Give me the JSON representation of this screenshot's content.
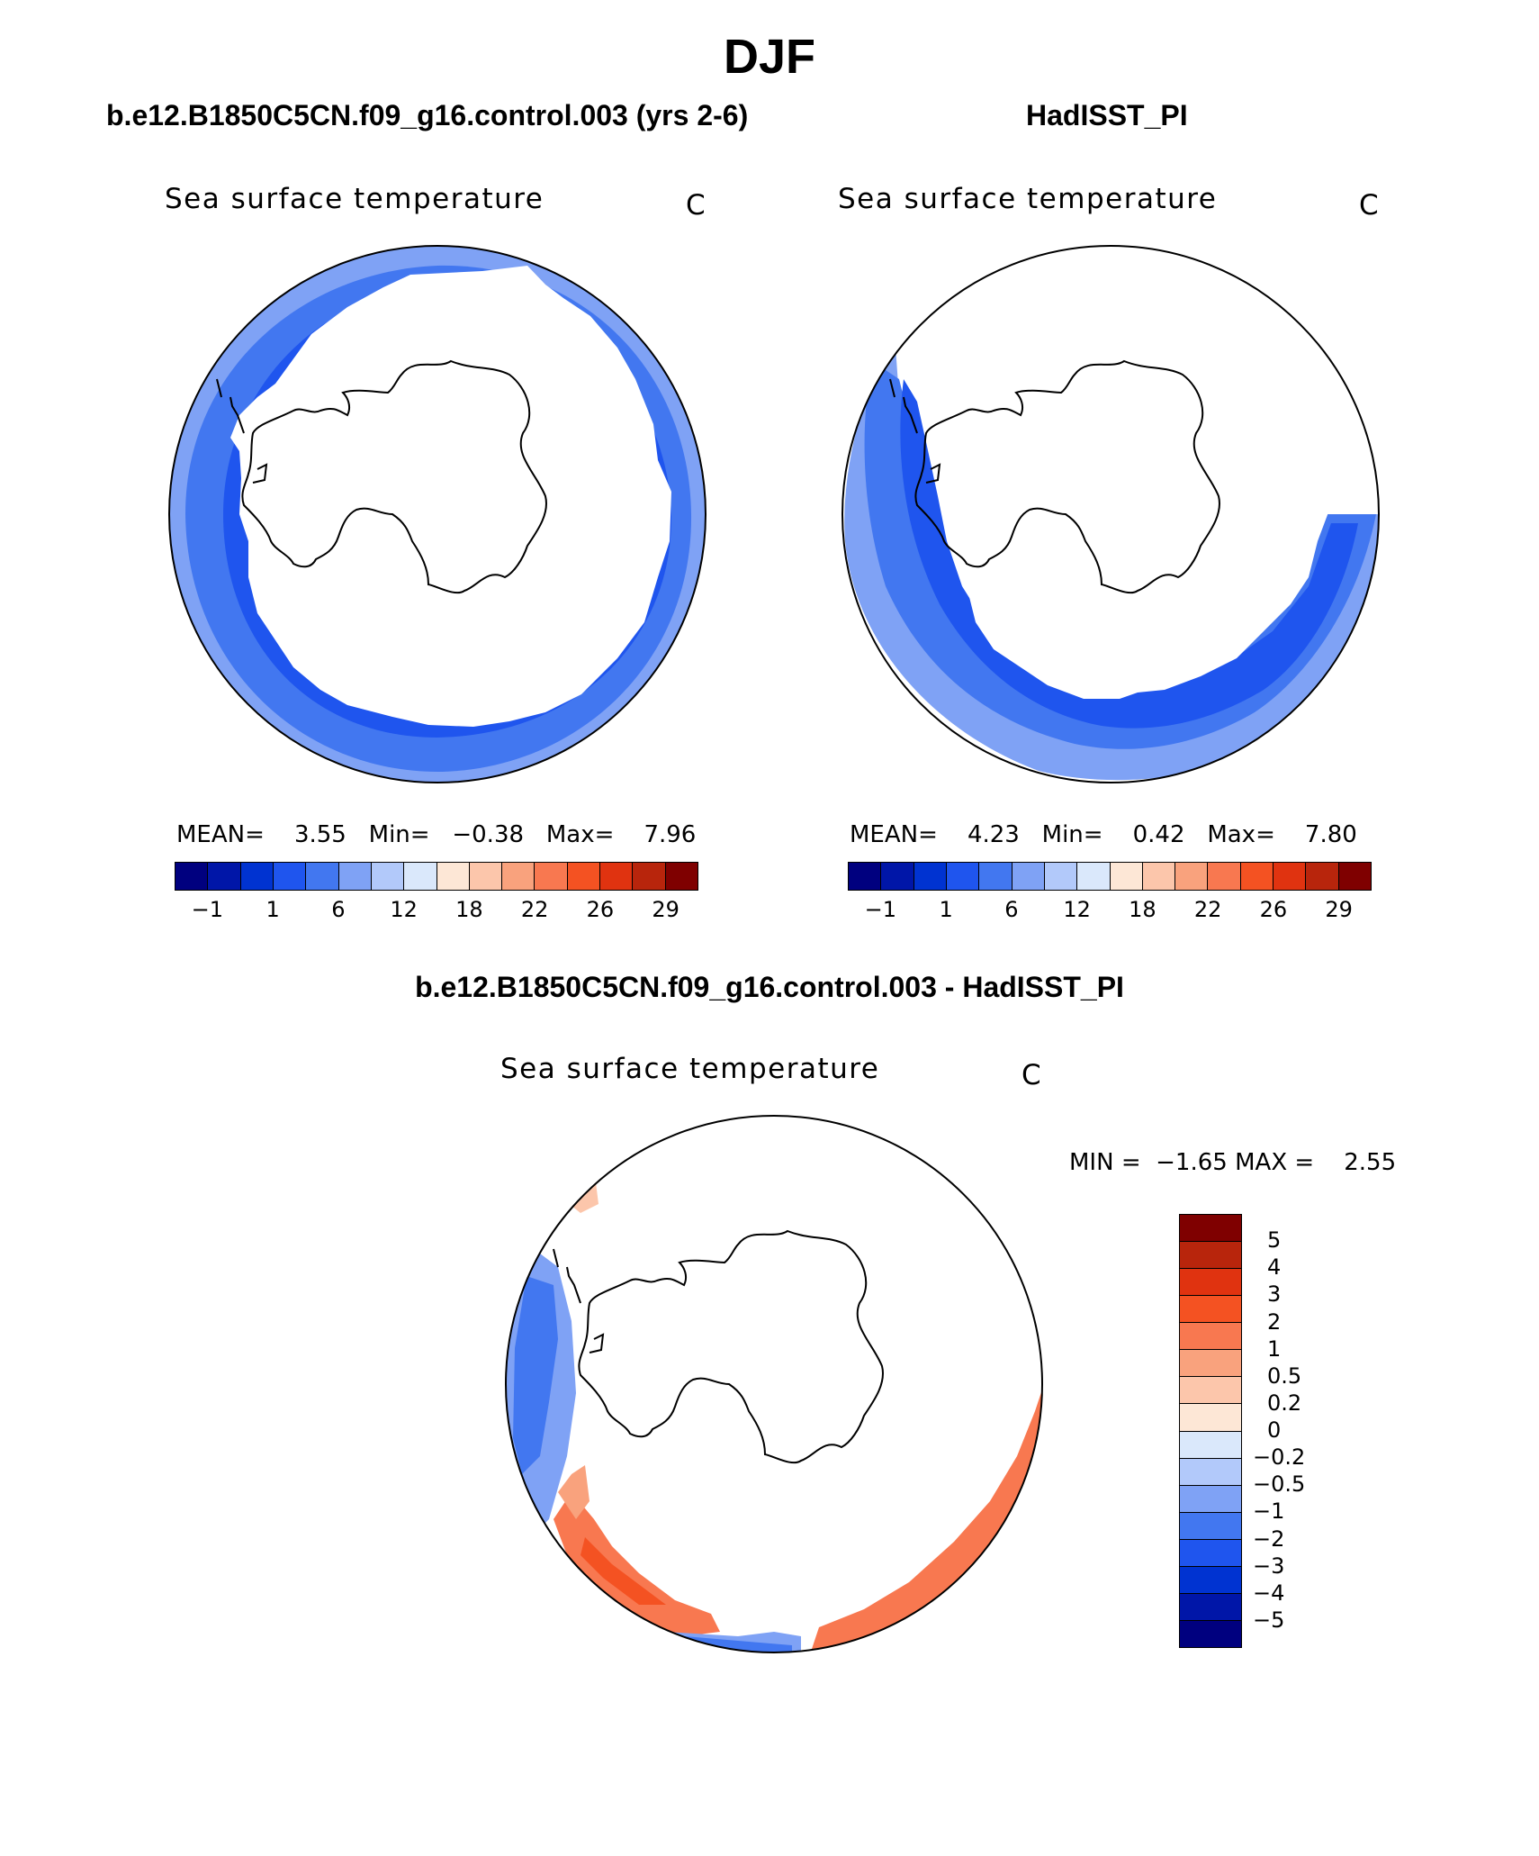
{
  "title": "DJF",
  "panels": [
    {
      "case": "b.e12.B1850C5CN.f09_g16.control.003 (yrs 2-6)",
      "variable": "Sea surface temperature",
      "units": "C",
      "stats": {
        "mean_label": "MEAN=",
        "mean": "3.55",
        "min_label": "Min=",
        "min": "−0.38",
        "max_label": "Max=",
        "max": "7.96"
      }
    },
    {
      "case": "HadISST_PI",
      "variable": "Sea surface temperature",
      "units": "C",
      "stats": {
        "mean_label": "MEAN=",
        "mean": "4.23",
        "min_label": "Min=",
        "min": "0.42",
        "max_label": "Max=",
        "max": "7.80"
      }
    }
  ],
  "abs_colorbar": {
    "colors": [
      "#00007f",
      "#0016a8",
      "#0033d1",
      "#1f55ee",
      "#4277f0",
      "#7fa2f5",
      "#b2c9fa",
      "#dae8fb",
      "#fde7d6",
      "#fcc6ab",
      "#f9a27d",
      "#f87850",
      "#f45222",
      "#e03310",
      "#b8250c",
      "#7f0000"
    ],
    "ticks": [
      "−1",
      "1",
      "6",
      "12",
      "18",
      "22",
      "26",
      "29"
    ]
  },
  "diff_panel": {
    "title": "b.e12.B1850C5CN.f09_g16.control.003 - HadISST_PI",
    "variable": "Sea surface temperature",
    "units": "C",
    "min_label": "MIN =",
    "min": "−1.65",
    "max_label": "MAX =",
    "max": "2.55"
  },
  "diff_colorbar": {
    "colors": [
      "#7f0000",
      "#b8250c",
      "#e03310",
      "#f45222",
      "#f87850",
      "#f9a27d",
      "#fcc6ab",
      "#fde7d6",
      "#dae8fb",
      "#b2c9fa",
      "#7fa2f5",
      "#4277f0",
      "#1f55ee",
      "#0033d1",
      "#0016a8",
      "#00007f"
    ],
    "ticks": [
      "5",
      "4",
      "3",
      "2",
      "1",
      "0.5",
      "0.2",
      "0",
      "−0.2",
      "−0.5",
      "−1",
      "−2",
      "−3",
      "−4",
      "−5"
    ]
  },
  "field_colors": {
    "light_blue": "#7fa2f5",
    "blue": "#4277f0",
    "dark_blue": "#1f55ee",
    "orange": "#f87850",
    "light_orange": "#f9a27d",
    "pale": "#fcc6ab",
    "dark_orange": "#f45222"
  }
}
